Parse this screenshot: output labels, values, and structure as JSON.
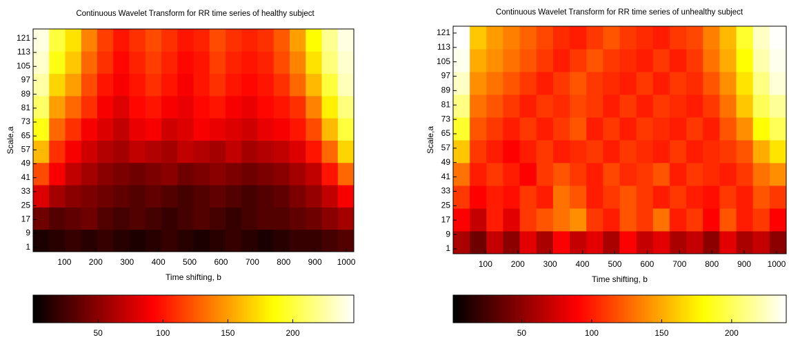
{
  "chart_data": [
    {
      "type": "heatmap",
      "title": "Continuous Wavelet Transform for RR time series of healthy subject",
      "x_label": "Time shifting, b",
      "y_label": "Scale,a",
      "colormap": "hot",
      "xlim": [
        0,
        1024
      ],
      "xticks": [
        100,
        200,
        300,
        400,
        500,
        600,
        700,
        800,
        900,
        1000
      ],
      "ylim": [
        -1.5,
        126.5
      ],
      "yticks": [
        1,
        9,
        17,
        25,
        33,
        41,
        49,
        57,
        65,
        73,
        81,
        89,
        97,
        105,
        113,
        121
      ],
      "clim": [
        0,
        247
      ],
      "colorbar_ticks": [
        50,
        100,
        150,
        200
      ],
      "z": [
        [
          10,
          15,
          20,
          15,
          20,
          15,
          10,
          15,
          20,
          15,
          10,
          15,
          20,
          15,
          10,
          15,
          20,
          20,
          25,
          30
        ],
        [
          40,
          30,
          35,
          40,
          30,
          25,
          30,
          25,
          20,
          25,
          30,
          25,
          20,
          25,
          30,
          30,
          35,
          40,
          50,
          60
        ],
        [
          80,
          60,
          50,
          45,
          40,
          35,
          30,
          35,
          30,
          25,
          30,
          35,
          30,
          25,
          30,
          35,
          45,
          55,
          70,
          90
        ],
        [
          120,
          90,
          70,
          60,
          50,
          45,
          40,
          45,
          50,
          40,
          45,
          50,
          45,
          40,
          45,
          50,
          60,
          70,
          100,
          130
        ],
        [
          160,
          110,
          90,
          75,
          65,
          60,
          70,
          65,
          60,
          70,
          65,
          60,
          70,
          60,
          65,
          70,
          80,
          100,
          130,
          170
        ],
        [
          190,
          130,
          110,
          90,
          80,
          70,
          85,
          90,
          75,
          80,
          90,
          85,
          80,
          75,
          85,
          90,
          100,
          120,
          160,
          200
        ],
        [
          210,
          150,
          130,
          110,
          90,
          80,
          95,
          100,
          90,
          85,
          95,
          100,
          90,
          85,
          95,
          100,
          110,
          140,
          180,
          215
        ],
        [
          225,
          170,
          150,
          120,
          100,
          90,
          100,
          110,
          100,
          90,
          100,
          110,
          100,
          95,
          100,
          110,
          130,
          160,
          200,
          230
        ],
        [
          235,
          190,
          165,
          130,
          110,
          95,
          105,
          115,
          105,
          95,
          100,
          115,
          105,
          100,
          105,
          120,
          140,
          175,
          215,
          235
        ],
        [
          240,
          200,
          175,
          140,
          115,
          100,
          110,
          120,
          110,
          100,
          105,
          120,
          110,
          105,
          110,
          125,
          150,
          185,
          220,
          240
        ]
      ]
    },
    {
      "type": "heatmap",
      "title": "Continuous Wavelet Transform for RR time series of unhealthy subject",
      "x_label": "Time shifting, b",
      "y_label": "Scale,a",
      "colormap": "hot",
      "xlim": [
        0,
        1030
      ],
      "xticks": [
        100,
        200,
        300,
        400,
        500,
        600,
        700,
        800,
        900,
        1000
      ],
      "ylim": [
        -1.7,
        124.8
      ],
      "yticks": [
        1,
        9,
        17,
        25,
        33,
        41,
        49,
        57,
        65,
        73,
        81,
        89,
        97,
        105,
        113,
        121
      ],
      "clim": [
        1,
        239
      ],
      "colorbar_ticks": [
        50,
        100,
        150,
        200
      ],
      "z": [
        [
          60,
          40,
          70,
          50,
          80,
          60,
          90,
          70,
          80,
          60,
          90,
          70,
          80,
          60,
          70,
          50,
          80,
          60,
          70,
          50
        ],
        [
          90,
          70,
          100,
          80,
          110,
          120,
          130,
          140,
          110,
          100,
          120,
          110,
          130,
          100,
          110,
          90,
          120,
          100,
          110,
          90
        ],
        [
          110,
          90,
          100,
          95,
          110,
          100,
          130,
          120,
          100,
          110,
          120,
          110,
          100,
          110,
          100,
          95,
          110,
          100,
          120,
          110
        ],
        [
          130,
          100,
          110,
          100,
          90,
          110,
          120,
          110,
          100,
          115,
          105,
          110,
          120,
          100,
          110,
          105,
          100,
          110,
          130,
          140
        ],
        [
          160,
          110,
          100,
          90,
          100,
          110,
          100,
          105,
          110,
          100,
          110,
          105,
          100,
          110,
          100,
          105,
          110,
          120,
          150,
          170
        ],
        [
          190,
          120,
          110,
          100,
          110,
          100,
          110,
          120,
          100,
          110,
          100,
          110,
          105,
          100,
          110,
          100,
          120,
          140,
          180,
          200
        ],
        [
          210,
          130,
          120,
          110,
          100,
          110,
          105,
          115,
          110,
          100,
          110,
          100,
          110,
          105,
          100,
          110,
          130,
          160,
          200,
          215
        ],
        [
          225,
          140,
          130,
          120,
          110,
          100,
          110,
          120,
          110,
          105,
          100,
          110,
          100,
          110,
          105,
          120,
          140,
          170,
          210,
          230
        ],
        [
          235,
          150,
          140,
          130,
          120,
          110,
          100,
          110,
          120,
          110,
          105,
          100,
          110,
          100,
          110,
          130,
          150,
          180,
          220,
          235
        ],
        [
          240,
          160,
          145,
          135,
          125,
          115,
          105,
          100,
          110,
          120,
          110,
          105,
          100,
          110,
          115,
          135,
          155,
          190,
          225,
          238
        ]
      ]
    }
  ]
}
